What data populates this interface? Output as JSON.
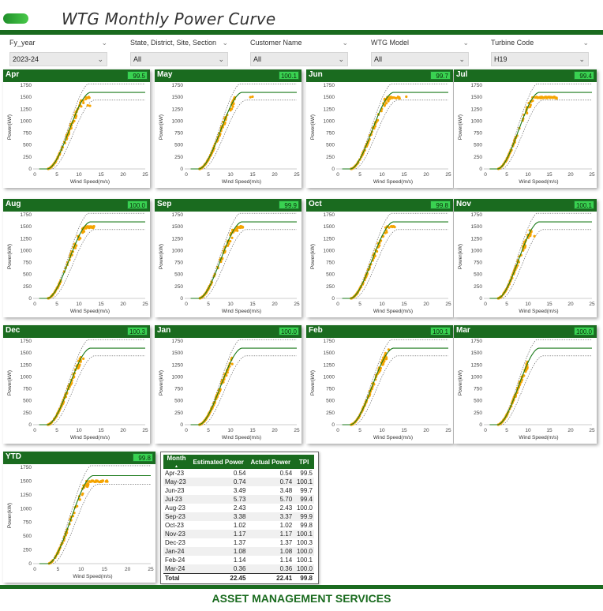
{
  "header": {
    "title": "WTG Monthly Power Curve"
  },
  "filters": [
    {
      "key": "fy_year",
      "label": "Fy_year",
      "value": "2023-24"
    },
    {
      "key": "location",
      "label": "State, District, Site, Section",
      "value": "All"
    },
    {
      "key": "customer",
      "label": "Customer Name",
      "value": "All"
    },
    {
      "key": "wtg_model",
      "label": "WTG Model",
      "value": "All"
    },
    {
      "key": "turbine",
      "label": "Turbine Code",
      "value": "H19"
    }
  ],
  "axis": {
    "xlabel": "Wind Speed(m/s)",
    "ylabel": "Power(kW)"
  },
  "chart_data": [
    {
      "name": "Apr",
      "tpi": "99.5",
      "type": "scatter",
      "xlim": [
        0,
        25
      ],
      "ylim": [
        0,
        1750
      ],
      "xticks": [
        0,
        5,
        10,
        15,
        20,
        25
      ],
      "yticks": [
        0,
        250,
        500,
        750,
        1000,
        1250,
        1500,
        1750
      ],
      "actual_max_ws": 12.5,
      "extra_points": [
        [
          12.0,
          1330
        ],
        [
          12.5,
          1320
        ]
      ]
    },
    {
      "name": "May",
      "tpi": "100.1",
      "type": "scatter",
      "xlim": [
        0,
        25
      ],
      "ylim": [
        0,
        1750
      ],
      "xticks": [
        0,
        5,
        10,
        15,
        20,
        25
      ],
      "yticks": [
        0,
        250,
        500,
        750,
        1000,
        1250,
        1500,
        1750
      ],
      "actual_max_ws": 11.0,
      "extra_points": [
        [
          14.5,
          1500
        ],
        [
          15.0,
          1510
        ]
      ]
    },
    {
      "name": "Jun",
      "tpi": "99.7",
      "type": "scatter",
      "xlim": [
        0,
        25
      ],
      "ylim": [
        0,
        1750
      ],
      "xticks": [
        0,
        5,
        10,
        15,
        20,
        25
      ],
      "yticks": [
        0,
        250,
        500,
        750,
        1000,
        1250,
        1500,
        1750
      ],
      "actual_max_ws": 14.0,
      "extra_points": [
        [
          15.5,
          1510
        ]
      ]
    },
    {
      "name": "Jul",
      "tpi": "99.4",
      "type": "scatter",
      "xlim": [
        0,
        25
      ],
      "ylim": [
        0,
        1750
      ],
      "xticks": [
        0,
        5,
        10,
        15,
        20,
        25
      ],
      "yticks": [
        0,
        250,
        500,
        750,
        1000,
        1250,
        1500,
        1750
      ],
      "actual_max_ws": 17.0,
      "extra_points": []
    },
    {
      "name": "Aug",
      "tpi": "100.0",
      "type": "scatter",
      "xlim": [
        0,
        25
      ],
      "ylim": [
        0,
        1750
      ],
      "xticks": [
        0,
        5,
        10,
        15,
        20,
        25
      ],
      "yticks": [
        0,
        250,
        500,
        750,
        1000,
        1250,
        1500,
        1750
      ],
      "actual_max_ws": 13.5,
      "extra_points": []
    },
    {
      "name": "Sep",
      "tpi": "99.9",
      "type": "scatter",
      "xlim": [
        0,
        25
      ],
      "ylim": [
        0,
        1750
      ],
      "xticks": [
        0,
        5,
        10,
        15,
        20,
        25
      ],
      "yticks": [
        0,
        250,
        500,
        750,
        1000,
        1250,
        1500,
        1750
      ],
      "actual_max_ws": 13.0,
      "extra_points": []
    },
    {
      "name": "Oct",
      "tpi": "99.8",
      "type": "scatter",
      "xlim": [
        0,
        25
      ],
      "ylim": [
        0,
        1750
      ],
      "xticks": [
        0,
        5,
        10,
        15,
        20,
        25
      ],
      "yticks": [
        0,
        250,
        500,
        750,
        1000,
        1250,
        1500,
        1750
      ],
      "actual_max_ws": 13.0,
      "extra_points": []
    },
    {
      "name": "Nov",
      "tpi": "100.1",
      "type": "scatter",
      "xlim": [
        0,
        25
      ],
      "ylim": [
        0,
        1750
      ],
      "xticks": [
        0,
        5,
        10,
        15,
        20,
        25
      ],
      "yticks": [
        0,
        250,
        500,
        750,
        1000,
        1250,
        1500,
        1750
      ],
      "actual_max_ws": 11.0,
      "extra_points": [
        [
          11.5,
          1300
        ]
      ]
    },
    {
      "name": "Dec",
      "tpi": "100.3",
      "type": "scatter",
      "xlim": [
        0,
        25
      ],
      "ylim": [
        0,
        1750
      ],
      "xticks": [
        0,
        5,
        10,
        15,
        20,
        25
      ],
      "yticks": [
        0,
        250,
        500,
        750,
        1000,
        1250,
        1500,
        1750
      ],
      "actual_max_ws": 10.5,
      "extra_points": [
        [
          11.0,
          1380
        ]
      ]
    },
    {
      "name": "Jan",
      "tpi": "100.0",
      "type": "scatter",
      "xlim": [
        0,
        25
      ],
      "ylim": [
        0,
        1750
      ],
      "xticks": [
        0,
        5,
        10,
        15,
        20,
        25
      ],
      "yticks": [
        0,
        250,
        500,
        750,
        1000,
        1250,
        1500,
        1750
      ],
      "actual_max_ws": 10.5,
      "extra_points": []
    },
    {
      "name": "Feb",
      "tpi": "100.1",
      "type": "scatter",
      "xlim": [
        0,
        25
      ],
      "ylim": [
        0,
        1750
      ],
      "xticks": [
        0,
        5,
        10,
        15,
        20,
        25
      ],
      "yticks": [
        0,
        250,
        500,
        750,
        1000,
        1250,
        1500,
        1750
      ],
      "actual_max_ws": 11.0,
      "extra_points": [
        [
          11.5,
          1570
        ]
      ]
    },
    {
      "name": "Mar",
      "tpi": "100.0",
      "type": "scatter",
      "xlim": [
        0,
        25
      ],
      "ylim": [
        0,
        1750
      ],
      "xticks": [
        0,
        5,
        10,
        15,
        20,
        25
      ],
      "yticks": [
        0,
        250,
        500,
        750,
        1000,
        1250,
        1500,
        1750
      ],
      "actual_max_ws": 10.0,
      "extra_points": []
    },
    {
      "name": "YTD",
      "tpi": "99.8",
      "type": "scatter",
      "xlim": [
        0,
        25
      ],
      "ylim": [
        0,
        1750
      ],
      "xticks": [
        0,
        5,
        10,
        15,
        20,
        25
      ],
      "yticks": [
        0,
        250,
        500,
        750,
        1000,
        1250,
        1500,
        1750
      ],
      "actual_max_ws": 16.0,
      "extra_points": []
    }
  ],
  "table": {
    "headers": [
      "Month",
      "Estimated Power",
      "Actual Power",
      "TPI"
    ],
    "rows": [
      [
        "Apr-23",
        "0.54",
        "0.54",
        "99.5"
      ],
      [
        "May-23",
        "0.74",
        "0.74",
        "100.1"
      ],
      [
        "Jun-23",
        "3.49",
        "3.48",
        "99.7"
      ],
      [
        "Jul-23",
        "5.73",
        "5.70",
        "99.4"
      ],
      [
        "Aug-23",
        "2.43",
        "2.43",
        "100.0"
      ],
      [
        "Sep-23",
        "3.38",
        "3.37",
        "99.9"
      ],
      [
        "Oct-23",
        "1.02",
        "1.02",
        "99.8"
      ],
      [
        "Nov-23",
        "1.17",
        "1.17",
        "100.1"
      ],
      [
        "Dec-23",
        "1.37",
        "1.37",
        "100.3"
      ],
      [
        "Jan-24",
        "1.08",
        "1.08",
        "100.0"
      ],
      [
        "Feb-24",
        "1.14",
        "1.14",
        "100.1"
      ],
      [
        "Mar-24",
        "0.36",
        "0.36",
        "100.0"
      ]
    ],
    "total": [
      "Total",
      "22.45",
      "22.41",
      "99.8"
    ]
  },
  "footer": {
    "text": "ASSET MANAGEMENT SERVICES"
  },
  "colors": {
    "brand": "#1a6b1f",
    "actual": "#f5a400",
    "estimated": "#1a7a1a",
    "tpi_badge": "#39d251"
  },
  "icons": {
    "dropdown": "chevron-down-icon",
    "logo": "logo-pill"
  }
}
